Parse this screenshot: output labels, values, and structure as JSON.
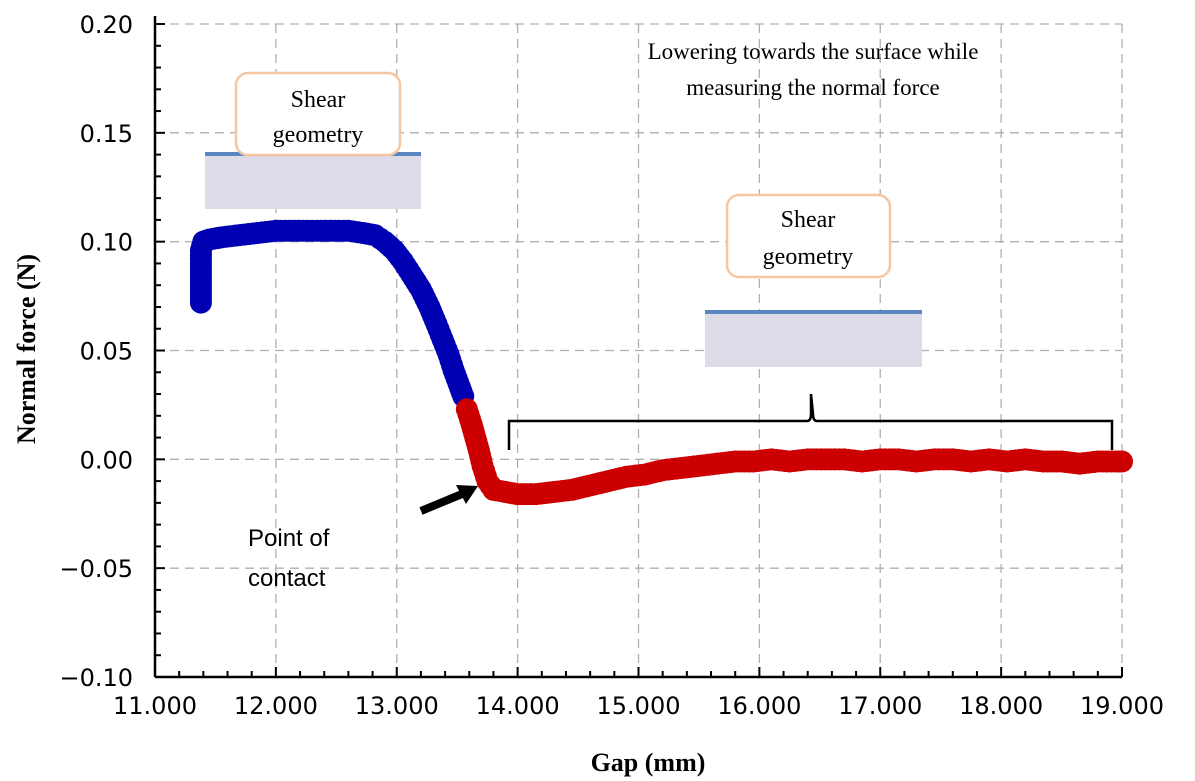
{
  "chart_data": {
    "type": "scatter",
    "title": "",
    "xlabel": "Gap (mm)",
    "ylabel": "Normal force (N)",
    "xlim": [
      11.0,
      19.0
    ],
    "ylim": [
      -0.1,
      0.2
    ],
    "x_ticks": [
      11,
      12,
      13,
      14,
      15,
      16,
      17,
      18,
      19
    ],
    "x_tick_labels": [
      "11.000",
      "12.000",
      "13.000",
      "14.000",
      "15.000",
      "16.000",
      "17.000",
      "18.000",
      "19.000"
    ],
    "y_ticks": [
      -0.1,
      -0.05,
      0.0,
      0.05,
      0.1,
      0.15,
      0.2
    ],
    "y_tick_labels": [
      "−0.10",
      "−0.05",
      "0.00",
      "0.05",
      "0.10",
      "0.15",
      "0.20"
    ],
    "grid": true,
    "grid_style": "dashed",
    "series": [
      {
        "color": "#0000b3",
        "points": [
          [
            11.38,
            0.072
          ],
          [
            11.38,
            0.078
          ],
          [
            11.38,
            0.084
          ],
          [
            11.38,
            0.09
          ],
          [
            11.38,
            0.096
          ],
          [
            11.4,
            0.1
          ],
          [
            11.45,
            0.101
          ],
          [
            11.55,
            0.102
          ],
          [
            11.7,
            0.103
          ],
          [
            11.85,
            0.104
          ],
          [
            12.0,
            0.105
          ],
          [
            12.15,
            0.105
          ],
          [
            12.3,
            0.105
          ],
          [
            12.45,
            0.105
          ],
          [
            12.6,
            0.105
          ],
          [
            12.72,
            0.104
          ],
          [
            12.82,
            0.103
          ],
          [
            12.9,
            0.1
          ],
          [
            12.98,
            0.096
          ],
          [
            13.05,
            0.091
          ],
          [
            13.12,
            0.085
          ],
          [
            13.2,
            0.078
          ],
          [
            13.27,
            0.07
          ],
          [
            13.33,
            0.062
          ],
          [
            13.38,
            0.055
          ],
          [
            13.43,
            0.048
          ],
          [
            13.47,
            0.041
          ],
          [
            13.51,
            0.035
          ],
          [
            13.55,
            0.029
          ]
        ]
      },
      {
        "color": "#cc0000",
        "points": [
          [
            13.58,
            0.023
          ],
          [
            13.62,
            0.016
          ],
          [
            13.65,
            0.01
          ],
          [
            13.68,
            0.004
          ],
          [
            13.71,
            -0.003
          ],
          [
            13.75,
            -0.01
          ],
          [
            13.8,
            -0.014
          ],
          [
            13.9,
            -0.015
          ],
          [
            14.0,
            -0.016
          ],
          [
            14.15,
            -0.016
          ],
          [
            14.3,
            -0.015
          ],
          [
            14.45,
            -0.014
          ],
          [
            14.6,
            -0.012
          ],
          [
            14.75,
            -0.01
          ],
          [
            14.9,
            -0.008
          ],
          [
            15.05,
            -0.007
          ],
          [
            15.2,
            -0.005
          ],
          [
            15.35,
            -0.004
          ],
          [
            15.5,
            -0.003
          ],
          [
            15.65,
            -0.002
          ],
          [
            15.8,
            -0.001
          ],
          [
            15.95,
            -0.001
          ],
          [
            16.1,
            0.0
          ],
          [
            16.25,
            -0.001
          ],
          [
            16.4,
            0.0
          ],
          [
            16.55,
            0.0
          ],
          [
            16.7,
            0.0
          ],
          [
            16.85,
            -0.001
          ],
          [
            17.0,
            0.0
          ],
          [
            17.15,
            0.0
          ],
          [
            17.3,
            -0.001
          ],
          [
            17.45,
            0.0
          ],
          [
            17.6,
            0.0
          ],
          [
            17.75,
            -0.001
          ],
          [
            17.9,
            0.0
          ],
          [
            18.05,
            -0.001
          ],
          [
            18.2,
            0.0
          ],
          [
            18.35,
            -0.001
          ],
          [
            18.5,
            -0.001
          ],
          [
            18.65,
            -0.002
          ],
          [
            18.8,
            -0.001
          ],
          [
            18.95,
            -0.001
          ],
          [
            19.0,
            -0.001
          ]
        ]
      }
    ],
    "annotations": {
      "top_note_line1": "Lowering towards the surface while",
      "top_note_line2": "measuring the normal force",
      "box1_line1": "Shear",
      "box1_line2": "geometry",
      "box2_line1": "Shear",
      "box2_line2": "geometry",
      "contact_line1": "Point of",
      "contact_line2": "contact"
    }
  }
}
